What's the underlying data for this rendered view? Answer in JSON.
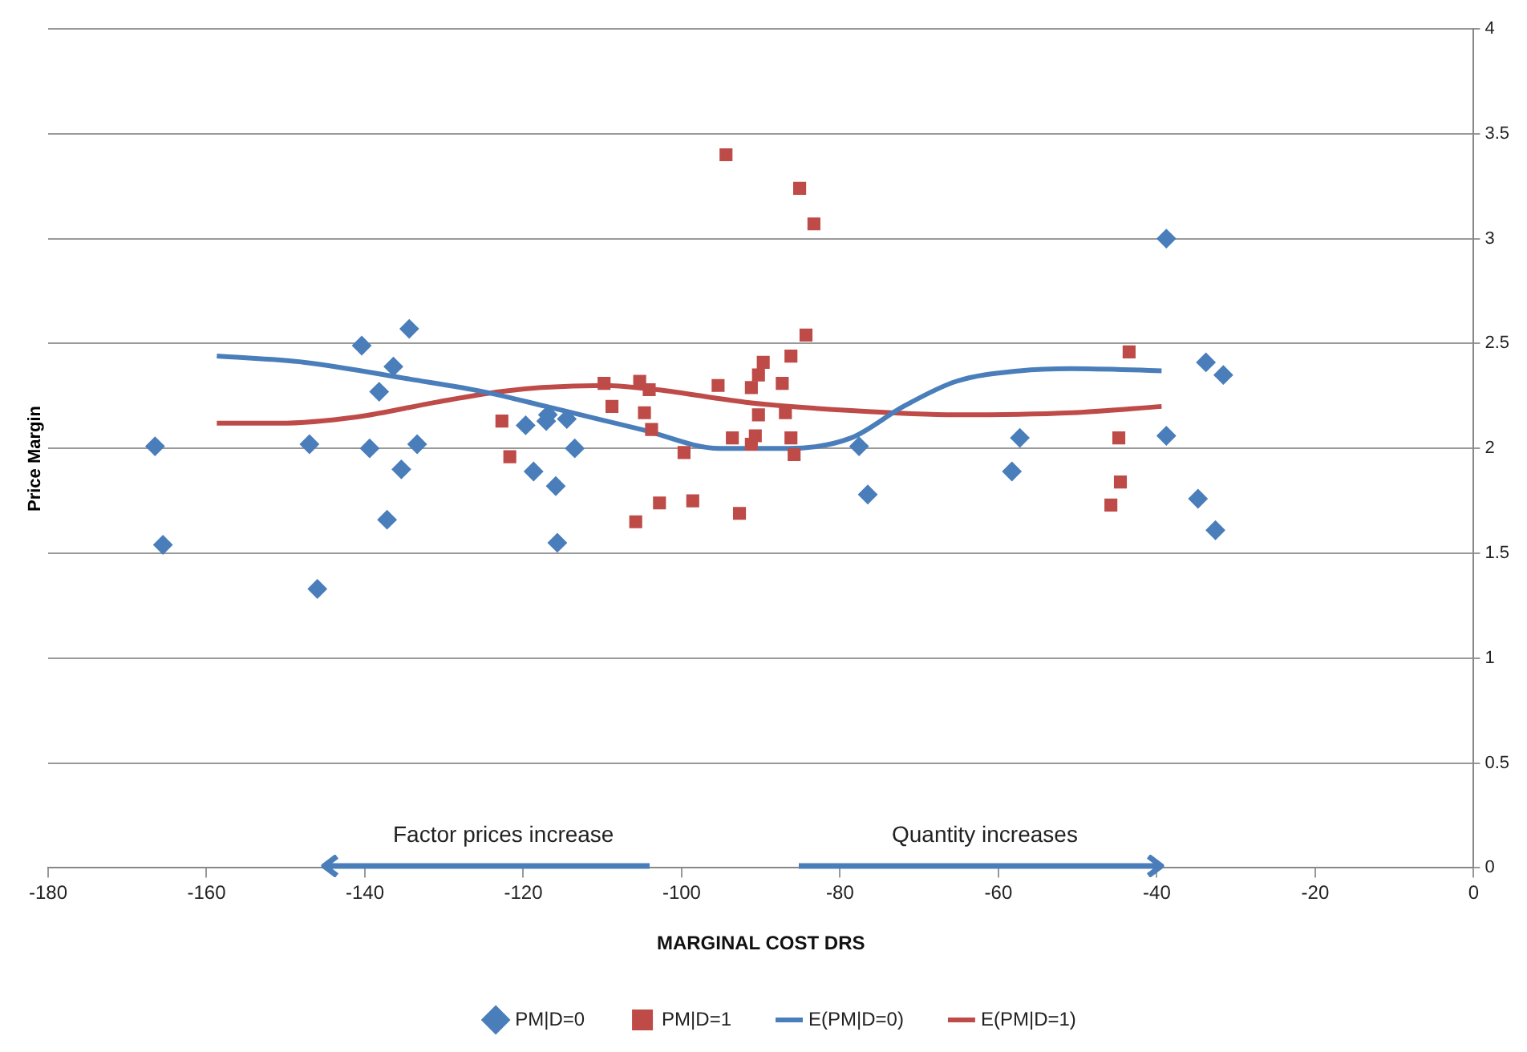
{
  "chart_data": {
    "type": "scatter",
    "xlabel": "MARGINAL COST DRS",
    "ylabel": "Price Margin",
    "xlim": [
      -180,
      0
    ],
    "xticks": [
      -180,
      -160,
      -140,
      -120,
      -100,
      -80,
      -60,
      -40,
      -20,
      0
    ],
    "ylim": [
      0,
      4
    ],
    "yticks": [
      0,
      0.5,
      1,
      1.5,
      2,
      2.5,
      3,
      3.5,
      4
    ],
    "grid": "y",
    "legend": "bottom",
    "annotations": [
      "Factor prices increase",
      "Quantity increases"
    ],
    "series": [
      {
        "name": "PM|D=0",
        "type": "scatter",
        "marker": "diamond",
        "color": "#4a7ebb",
        "x": [
          -166.5,
          -165.5,
          -147,
          -146,
          -140.4,
          -139.4,
          -138.2,
          -137.2,
          -136.4,
          -135.4,
          -134.4,
          -133.4,
          -119.7,
          -118.7,
          -117.1,
          -116.9,
          -115.9,
          -115.7,
          -114.5,
          -113.5,
          -77.6,
          -76.5,
          -58.3,
          -57.3,
          -38.8,
          -38.8,
          -33.8,
          -34.8,
          -31.6,
          -32.6
        ],
        "values": [
          2.01,
          1.54,
          2.02,
          1.33,
          2.49,
          2.0,
          2.27,
          1.66,
          2.39,
          1.9,
          2.57,
          2.02,
          2.11,
          1.89,
          2.13,
          2.16,
          1.82,
          1.55,
          2.14,
          2.0,
          2.01,
          1.78,
          1.89,
          2.05,
          3.0,
          2.06,
          2.41,
          1.76,
          2.35,
          1.61
        ]
      },
      {
        "name": "PM|D=1",
        "type": "scatter",
        "marker": "square",
        "color": "#be4b48",
        "x": [
          -122.7,
          -121.7,
          -109.8,
          -108.8,
          -105.3,
          -104.1,
          -104.7,
          -103.8,
          -105.8,
          -102.8,
          -99.7,
          -98.6,
          -94.4,
          -95.4,
          -93.6,
          -92.7,
          -91.2,
          -91.2,
          -90.7,
          -90.3,
          -90.3,
          -89.7,
          -87.3,
          -86.9,
          -86.2,
          -86.2,
          -85.8,
          -85.1,
          -84.3,
          -83.3,
          -43.5,
          -44.8,
          -44.6,
          -45.8
        ],
        "values": [
          2.13,
          1.96,
          2.31,
          2.2,
          2.32,
          2.28,
          2.17,
          2.09,
          1.65,
          1.74,
          1.98,
          1.75,
          3.4,
          2.3,
          2.05,
          1.69,
          2.29,
          2.02,
          2.06,
          2.16,
          2.35,
          2.41,
          2.31,
          2.17,
          2.44,
          2.05,
          1.97,
          3.24,
          2.54,
          3.07,
          2.46,
          2.05,
          1.84,
          1.73
        ]
      },
      {
        "name": "E(PM|D=0)",
        "type": "line",
        "marker": "none",
        "color": "#4a7ebb",
        "x": [
          -158.7,
          -147.6,
          -134.3,
          -125,
          -117.1,
          -105.1,
          -95.2,
          -86.6,
          -78.6,
          -72,
          -65.3,
          -57.3,
          -50.8,
          -39.4
        ],
        "values": [
          2.44,
          2.41,
          2.33,
          2.27,
          2.2,
          2.09,
          2.0,
          2.0,
          2.05,
          2.2,
          2.32,
          2.37,
          2.38,
          2.37
        ]
      },
      {
        "name": "E(PM|D=1)",
        "type": "line",
        "marker": "none",
        "color": "#be4b48",
        "x": [
          -158.7,
          -150.9,
          -141,
          -131,
          -123,
          -117.7,
          -109.8,
          -103.1,
          -91.9,
          -78.6,
          -65.3,
          -50.7,
          -39.4
        ],
        "values": [
          2.12,
          2.12,
          2.15,
          2.22,
          2.27,
          2.29,
          2.3,
          2.28,
          2.22,
          2.18,
          2.16,
          2.17,
          2.2
        ]
      }
    ]
  }
}
